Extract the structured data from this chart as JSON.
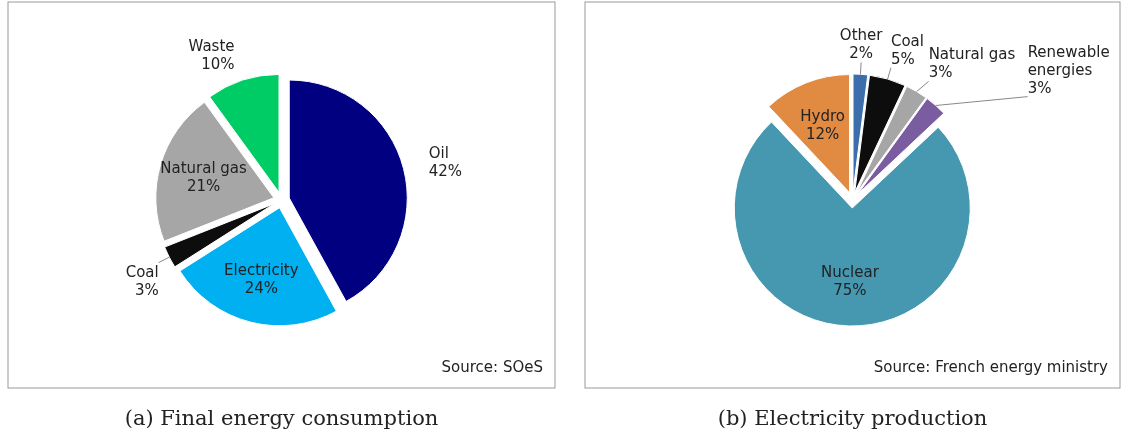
{
  "chart_data": [
    {
      "type": "pie",
      "title": "(a) Final energy consumption",
      "categories": [
        "Oil",
        "Electricity",
        "Coal",
        "Natural gas",
        "Waste"
      ],
      "values": [
        42,
        24,
        3,
        21,
        10
      ],
      "value_labels": [
        "42%",
        "24%",
        "3%",
        "21%",
        "10%"
      ],
      "colors": [
        "#000080",
        "#00b0f0",
        "#0d0d0d",
        "#a6a6a6",
        "#00cc66"
      ],
      "annotations": [
        "Source: SOeS"
      ],
      "legend": false
    },
    {
      "type": "pie",
      "title": "(b) Electricity production",
      "categories": [
        "Other",
        "Coal",
        "Natural gas",
        "Renewable energies",
        "Nuclear",
        "Hydro"
      ],
      "values": [
        2,
        5,
        3,
        3,
        75,
        12
      ],
      "value_labels": [
        "2%",
        "5%",
        "3%",
        "3%",
        "75%",
        "12%"
      ],
      "colors": [
        "#3c6eab",
        "#0d0d0d",
        "#a6a6a6",
        "#7a5ca0",
        "#4598b0",
        "#e08a42"
      ],
      "annotations": [
        "Source: French energy ministry"
      ],
      "legend": false
    }
  ]
}
